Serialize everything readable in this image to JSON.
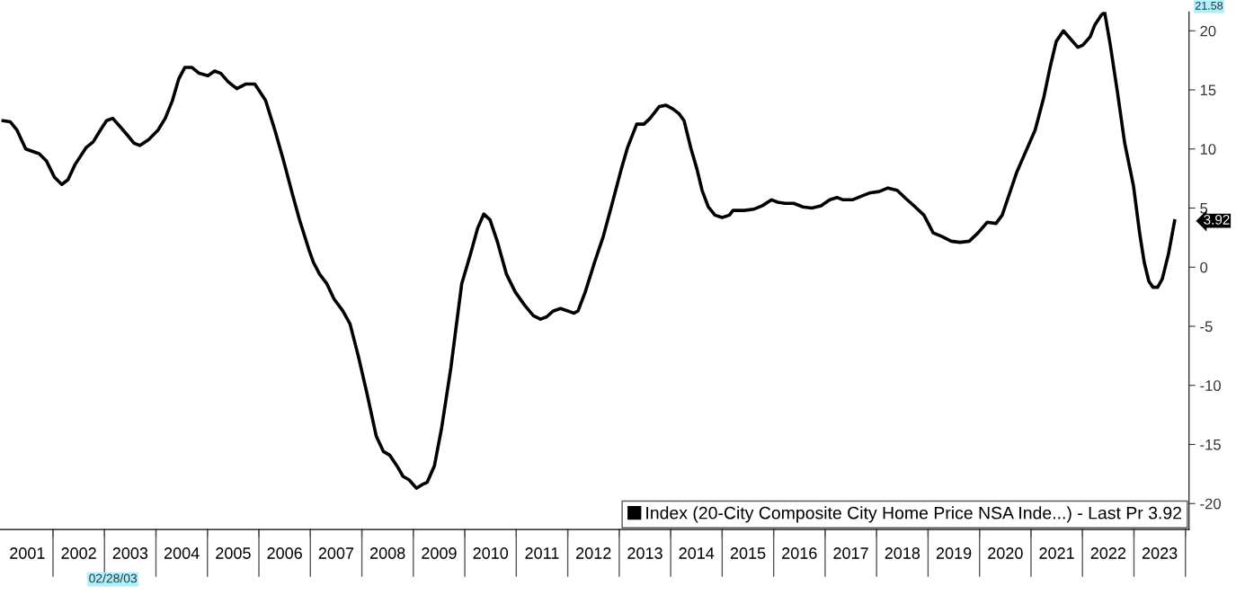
{
  "chart_data": {
    "type": "line",
    "x": [
      2001.03,
      2001.17,
      2001.3,
      2001.47,
      2001.73,
      2001.87,
      2002.03,
      2002.17,
      2002.29,
      2002.43,
      2002.64,
      2002.78,
      2002.92,
      2003.04,
      2003.16,
      2003.3,
      2003.44,
      2003.57,
      2003.69,
      2003.86,
      2004.04,
      2004.18,
      2004.32,
      2004.44,
      2004.56,
      2004.7,
      2004.84,
      2005.01,
      2005.14,
      2005.26,
      2005.4,
      2005.57,
      2005.75,
      2005.92,
      2006.13,
      2006.31,
      2006.48,
      2006.65,
      2006.79,
      2006.97,
      2007.06,
      2007.18,
      2007.32,
      2007.46,
      2007.63,
      2007.77,
      2007.93,
      2008.1,
      2008.28,
      2008.42,
      2008.54,
      2008.68,
      2008.8,
      2008.92,
      2009.06,
      2009.17,
      2009.27,
      2009.41,
      2009.55,
      2009.73,
      2009.94,
      2010.11,
      2010.25,
      2010.37,
      2010.49,
      2010.63,
      2010.81,
      2010.98,
      2011.16,
      2011.33,
      2011.47,
      2011.59,
      2011.72,
      2011.86,
      2012.0,
      2012.12,
      2012.2,
      2012.34,
      2012.52,
      2012.69,
      2012.87,
      2013.04,
      2013.16,
      2013.34,
      2013.48,
      2013.6,
      2013.78,
      2013.91,
      2014.04,
      2014.16,
      2014.26,
      2014.39,
      2014.51,
      2014.61,
      2014.73,
      2014.86,
      2015.0,
      2015.14,
      2015.21,
      2015.43,
      2015.61,
      2015.78,
      2015.96,
      2016.08,
      2016.22,
      2016.39,
      2016.57,
      2016.74,
      2016.92,
      2017.09,
      2017.23,
      2017.35,
      2017.53,
      2017.7,
      2017.88,
      2018.05,
      2018.22,
      2018.4,
      2018.57,
      2018.75,
      2018.92,
      2019.1,
      2019.27,
      2019.45,
      2019.62,
      2019.8,
      2019.97,
      2020.15,
      2020.32,
      2020.44,
      2020.58,
      2020.72,
      2020.9,
      2021.08,
      2021.25,
      2021.37,
      2021.49,
      2021.63,
      2021.77,
      2021.91,
      2022.01,
      2022.15,
      2022.24,
      2022.36,
      2022.43,
      2022.54,
      2022.68,
      2022.82,
      2022.99,
      2023.11,
      2023.2,
      2023.29,
      2023.37,
      2023.46,
      2023.55,
      2023.67,
      2023.79
    ],
    "series": [
      {
        "name": "Index (20-City Composite City Home Price NSA Inde...) - Last Pr 3.92",
        "color": "#000000",
        "values": [
          12.4,
          12.3,
          11.6,
          10.0,
          9.6,
          9.0,
          7.6,
          7.0,
          7.4,
          8.7,
          10.1,
          10.6,
          11.6,
          12.4,
          12.6,
          11.9,
          11.2,
          10.5,
          10.3,
          10.8,
          11.6,
          12.6,
          14.1,
          15.9,
          16.9,
          16.9,
          16.4,
          16.2,
          16.6,
          16.4,
          15.7,
          15.1,
          15.5,
          15.5,
          14.1,
          11.6,
          9.0,
          6.2,
          4.0,
          1.5,
          0.4,
          -0.6,
          -1.4,
          -2.7,
          -3.7,
          -4.8,
          -7.5,
          -10.7,
          -14.3,
          -15.6,
          -15.9,
          -16.8,
          -17.7,
          -18.0,
          -18.7,
          -18.4,
          -18.2,
          -16.8,
          -13.6,
          -8.5,
          -1.4,
          1.1,
          3.3,
          4.5,
          4.0,
          2.2,
          -0.6,
          -2.1,
          -3.2,
          -4.1,
          -4.4,
          -4.2,
          -3.7,
          -3.5,
          -3.7,
          -3.9,
          -3.7,
          -2.1,
          0.4,
          2.6,
          5.5,
          8.3,
          10.1,
          12.1,
          12.1,
          12.6,
          13.6,
          13.7,
          13.4,
          13.0,
          12.4,
          10.1,
          8.3,
          6.5,
          5.1,
          4.4,
          4.2,
          4.4,
          4.8,
          4.8,
          4.9,
          5.2,
          5.7,
          5.5,
          5.4,
          5.4,
          5.1,
          5.0,
          5.2,
          5.7,
          5.9,
          5.7,
          5.7,
          6.0,
          6.3,
          6.4,
          6.7,
          6.5,
          5.8,
          5.1,
          4.4,
          2.9,
          2.6,
          2.2,
          2.1,
          2.2,
          2.9,
          3.8,
          3.7,
          4.4,
          6.2,
          8.0,
          9.8,
          11.6,
          14.4,
          16.9,
          19.1,
          20.0,
          19.3,
          18.6,
          18.8,
          19.5,
          20.5,
          21.3,
          21.58,
          18.8,
          14.8,
          10.5,
          6.9,
          2.9,
          0.4,
          -1.2,
          -1.7,
          -1.7,
          -1.0,
          1.1,
          3.92
        ]
      }
    ],
    "xlim": [
      2000.97,
      2024.07
    ],
    "xticks": [
      {
        "value": 2001.5,
        "label": "2001"
      },
      {
        "value": 2002,
        "label": null
      },
      {
        "value": 2002.5,
        "label": "2002"
      },
      {
        "value": 2003,
        "label": null
      },
      {
        "value": 2003.5,
        "label": "2003"
      },
      {
        "value": 2004,
        "label": null
      },
      {
        "value": 2004.5,
        "label": "2004"
      },
      {
        "value": 2005,
        "label": null
      },
      {
        "value": 2005.5,
        "label": "2005"
      },
      {
        "value": 2006,
        "label": null
      },
      {
        "value": 2006.5,
        "label": "2006"
      },
      {
        "value": 2007,
        "label": null
      },
      {
        "value": 2007.5,
        "label": "2007"
      },
      {
        "value": 2008,
        "label": null
      },
      {
        "value": 2008.5,
        "label": "2008"
      },
      {
        "value": 2009,
        "label": null
      },
      {
        "value": 2009.5,
        "label": "2009"
      },
      {
        "value": 2010,
        "label": null
      },
      {
        "value": 2010.5,
        "label": "2010"
      },
      {
        "value": 2011,
        "label": null
      },
      {
        "value": 2011.5,
        "label": "2011"
      },
      {
        "value": 2012,
        "label": null
      },
      {
        "value": 2012.5,
        "label": "2012"
      },
      {
        "value": 2013,
        "label": null
      },
      {
        "value": 2013.5,
        "label": "2013"
      },
      {
        "value": 2014,
        "label": null
      },
      {
        "value": 2014.5,
        "label": "2014"
      },
      {
        "value": 2015,
        "label": null
      },
      {
        "value": 2015.5,
        "label": "2015"
      },
      {
        "value": 2016,
        "label": null
      },
      {
        "value": 2016.5,
        "label": "2016"
      },
      {
        "value": 2017,
        "label": null
      },
      {
        "value": 2017.5,
        "label": "2017"
      },
      {
        "value": 2018,
        "label": null
      },
      {
        "value": 2018.5,
        "label": "2018"
      },
      {
        "value": 2019,
        "label": null
      },
      {
        "value": 2019.5,
        "label": "2019"
      },
      {
        "value": 2020,
        "label": null
      },
      {
        "value": 2020.5,
        "label": "2020"
      },
      {
        "value": 2021,
        "label": null
      },
      {
        "value": 2021.5,
        "label": "2021"
      },
      {
        "value": 2022,
        "label": null
      },
      {
        "value": 2022.5,
        "label": "2022"
      },
      {
        "value": 2023,
        "label": null
      },
      {
        "value": 2023.5,
        "label": "2023"
      },
      {
        "value": 2024,
        "label": null
      }
    ],
    "ylim": [
      -22.2,
      21.6
    ],
    "yticks": [
      -20,
      -15,
      -10,
      -5,
      0,
      5,
      10,
      15,
      20
    ],
    "annotations": [
      "3.92",
      "21.58",
      "02/28/03"
    ],
    "legend": "bottom right",
    "grid": false,
    "marker": "none",
    "line_style": "solid"
  }
}
